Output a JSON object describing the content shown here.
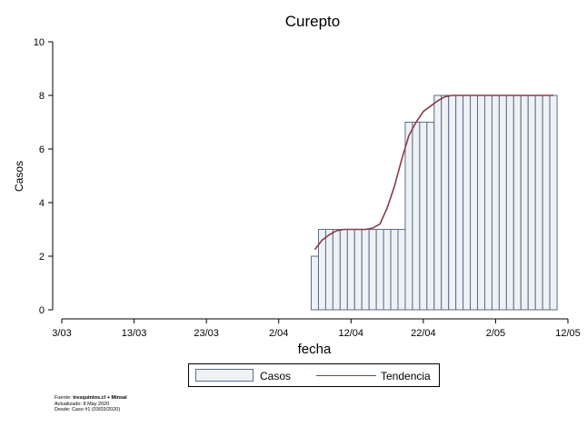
{
  "chart_data": {
    "type": "bar",
    "title": "Curepto",
    "xlabel": "fecha",
    "ylabel": "Casos",
    "ylim": [
      0,
      10
    ],
    "yticks": [
      0,
      2,
      4,
      6,
      8,
      10
    ],
    "xlim_dates": [
      "2020-03-03",
      "2020-05-12"
    ],
    "xticks": [
      "3/03",
      "13/03",
      "23/03",
      "2/04",
      "12/04",
      "22/04",
      "2/05",
      "12/05"
    ],
    "bar_start_date": "2020-04-07",
    "values": [
      2,
      3,
      3,
      3,
      3,
      3,
      3,
      3,
      3,
      3,
      3,
      3,
      3,
      7,
      7,
      7,
      7,
      8,
      8,
      8,
      8,
      8,
      8,
      8,
      8,
      8,
      8,
      8,
      8,
      8,
      8,
      8,
      8,
      8
    ],
    "trend": [
      2.25,
      2.6,
      2.8,
      2.95,
      3.0,
      3.0,
      3.0,
      3.0,
      3.05,
      3.2,
      3.8,
      4.6,
      5.6,
      6.5,
      7.0,
      7.4,
      7.6,
      7.8,
      7.95,
      8,
      8,
      8,
      8,
      8,
      8,
      8,
      8,
      8,
      8,
      8,
      8,
      8,
      8,
      8
    ],
    "series": [
      {
        "name": "Casos",
        "kind": "bar",
        "color": "#eef2f3",
        "edge": "#5b6d8d"
      },
      {
        "name": "Tendencia",
        "kind": "line",
        "color": "#8b3a45"
      }
    ],
    "legend_position": "bottom-center",
    "grid": false
  },
  "footer": {
    "source_prefix": "Fuente: ",
    "source_bold": "tresquintos.cl + Minsal",
    "updated": "Actualizado: 8 May 2020",
    "since": "Desde: Caso #1  (03/03/2020)"
  }
}
